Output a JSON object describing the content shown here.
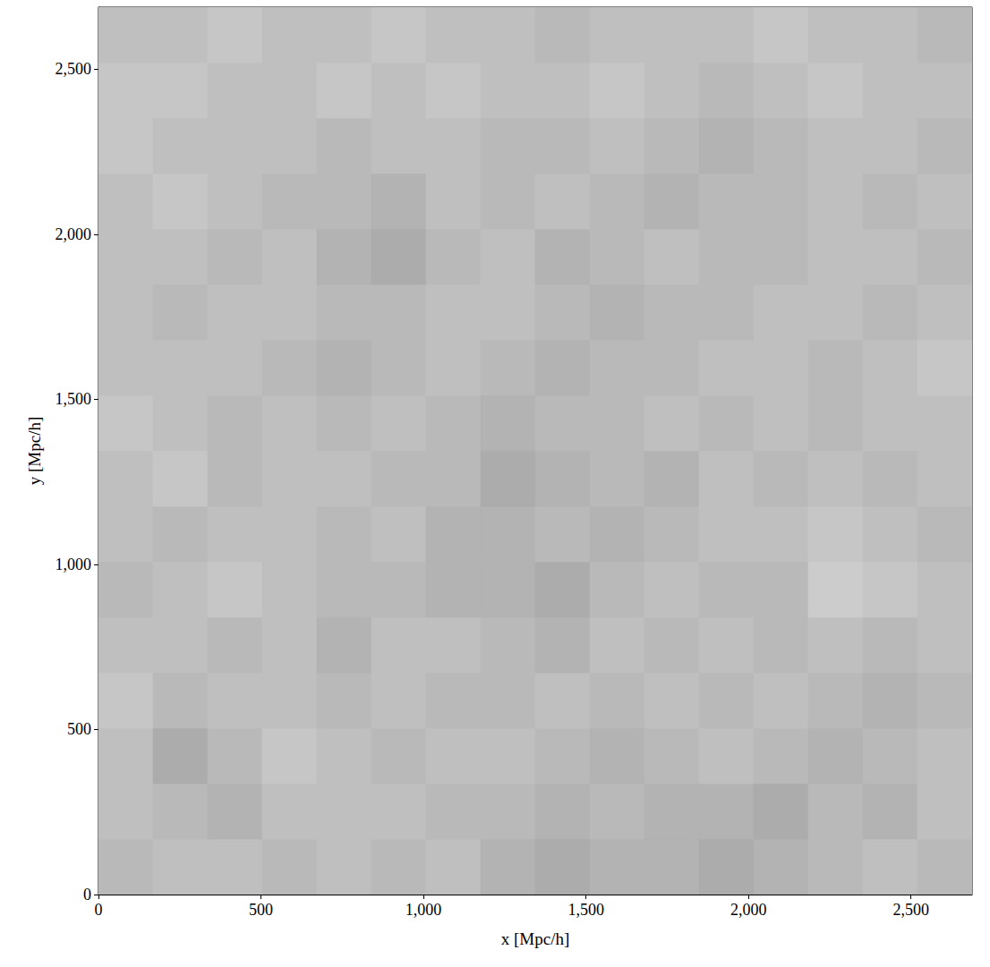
{
  "chart_data": {
    "type": "heatmap",
    "x_label": "x [Mpc/h]",
    "y_label": "y [Mpc/h]",
    "xlim": [
      0,
      2688
    ],
    "ylim": [
      0,
      2688
    ],
    "xticks": [
      0,
      500,
      1000,
      1500,
      2000,
      2500
    ],
    "yticks": [
      0,
      500,
      1000,
      1500,
      2000,
      2500
    ],
    "x_edges": [
      0,
      168,
      336,
      504,
      672,
      840,
      1008,
      1176,
      1344,
      1512,
      1680,
      1848,
      2016,
      2184,
      2352,
      2520,
      2688
    ],
    "y_edges": [
      0,
      168,
      336,
      504,
      672,
      840,
      1008,
      1176,
      1344,
      1512,
      1680,
      1848,
      2016,
      2184,
      2352,
      2520,
      2688
    ],
    "cells": [
      [
        1.1,
        1.0,
        1.0,
        1.1,
        1.0,
        1.1,
        1.0,
        1.2,
        1.3,
        1.2,
        1.2,
        1.3,
        1.2,
        1.1,
        1.0,
        1.1
      ],
      [
        1.0,
        1.1,
        1.2,
        1.0,
        1.0,
        1.0,
        1.1,
        1.1,
        1.2,
        1.1,
        1.2,
        1.2,
        1.3,
        1.1,
        1.2,
        1.0
      ],
      [
        1.0,
        1.3,
        1.1,
        0.9,
        1.0,
        1.1,
        1.0,
        1.0,
        1.1,
        1.2,
        1.1,
        1.0,
        1.1,
        1.2,
        1.1,
        1.0
      ],
      [
        0.9,
        1.1,
        1.0,
        1.0,
        1.1,
        1.0,
        1.1,
        1.1,
        1.0,
        1.1,
        1.0,
        1.1,
        1.0,
        1.1,
        1.2,
        1.1
      ],
      [
        1.0,
        1.0,
        1.1,
        1.0,
        1.2,
        1.0,
        1.0,
        1.1,
        1.2,
        1.0,
        1.1,
        1.0,
        1.1,
        1.0,
        1.1,
        1.0
      ],
      [
        1.1,
        1.0,
        0.9,
        1.0,
        1.1,
        1.1,
        1.2,
        1.2,
        1.3,
        1.1,
        1.0,
        1.1,
        1.1,
        0.8,
        0.9,
        1.0
      ],
      [
        1.0,
        1.1,
        1.0,
        1.0,
        1.1,
        1.0,
        1.2,
        1.2,
        1.1,
        1.2,
        1.1,
        1.0,
        1.0,
        0.9,
        1.0,
        1.1
      ],
      [
        1.0,
        0.9,
        1.1,
        1.0,
        1.0,
        1.1,
        1.1,
        1.3,
        1.2,
        1.1,
        1.2,
        1.0,
        1.1,
        1.0,
        1.1,
        1.0
      ],
      [
        0.9,
        1.0,
        1.1,
        1.0,
        1.1,
        1.0,
        1.1,
        1.2,
        1.1,
        1.1,
        1.0,
        1.1,
        1.0,
        1.1,
        1.0,
        1.0
      ],
      [
        1.0,
        1.0,
        1.0,
        1.1,
        1.2,
        1.1,
        1.0,
        1.1,
        1.2,
        1.1,
        1.1,
        1.0,
        1.0,
        1.1,
        1.0,
        0.9
      ],
      [
        1.0,
        1.1,
        1.0,
        1.0,
        1.1,
        1.1,
        1.0,
        1.0,
        1.1,
        1.2,
        1.1,
        1.1,
        1.0,
        1.0,
        1.1,
        1.0
      ],
      [
        1.0,
        1.0,
        1.1,
        1.0,
        1.2,
        1.3,
        1.1,
        1.0,
        1.2,
        1.1,
        1.0,
        1.1,
        1.1,
        1.0,
        1.0,
        1.1
      ],
      [
        1.0,
        0.9,
        1.0,
        1.1,
        1.1,
        1.2,
        1.0,
        1.1,
        1.0,
        1.1,
        1.2,
        1.1,
        1.1,
        1.0,
        1.1,
        1.0
      ],
      [
        0.9,
        1.0,
        1.0,
        1.0,
        1.1,
        1.0,
        1.0,
        1.1,
        1.1,
        1.0,
        1.1,
        1.2,
        1.1,
        1.0,
        1.0,
        1.1
      ],
      [
        0.9,
        0.9,
        1.0,
        1.0,
        0.9,
        1.0,
        0.9,
        1.0,
        1.0,
        0.9,
        1.0,
        1.1,
        1.0,
        0.9,
        1.0,
        1.0
      ],
      [
        1.0,
        1.0,
        0.9,
        1.0,
        1.0,
        0.9,
        1.0,
        1.0,
        1.1,
        1.0,
        1.0,
        1.0,
        0.9,
        1.0,
        1.0,
        1.1
      ]
    ],
    "color_range": [
      0,
      4
    ]
  }
}
